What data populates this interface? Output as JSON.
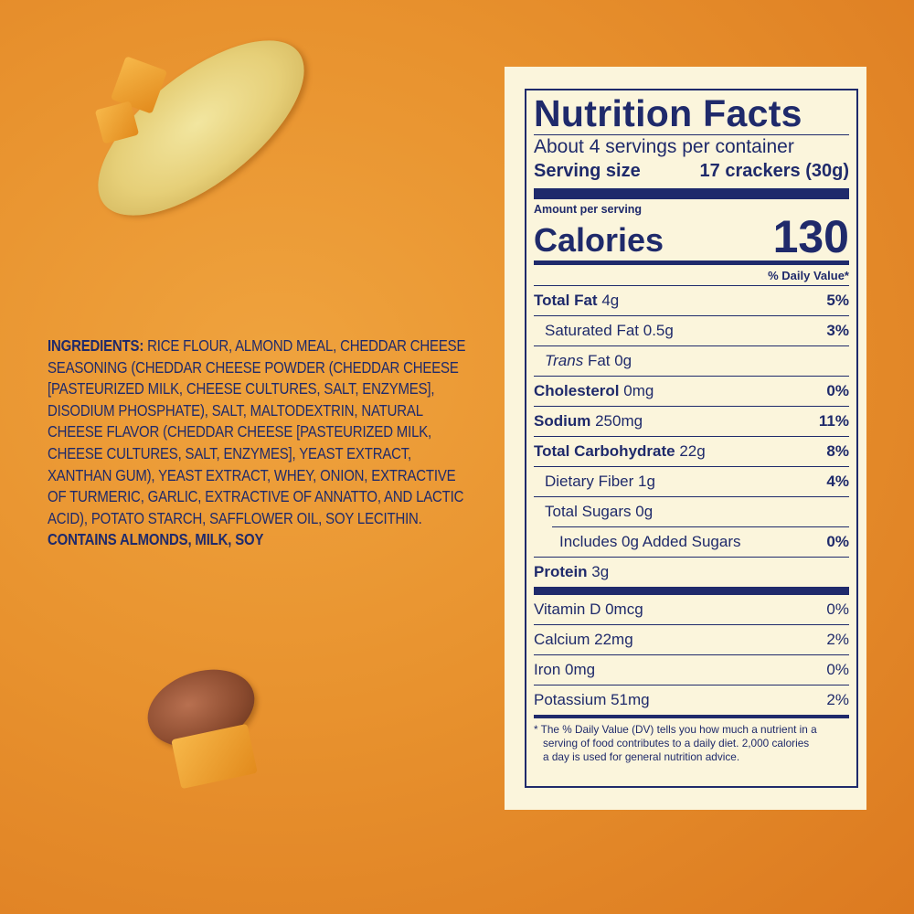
{
  "ingredients": {
    "label": "INGREDIENTS:",
    "text": "RICE FLOUR, ALMOND MEAL, CHEDDAR CHEESE SEASONING (CHEDDAR CHEESE POWDER (CHEDDAR CHEESE [PASTEURIZED MILK, CHEESE CULTURES, SALT, ENZYMES], DISODIUM PHOSPHATE), SALT, MALTODEXTRIN, NATURAL CHEESE FLAVOR (CHEDDAR CHEESE [PASTEURIZED MILK, CHEESE CULTURES, SALT, ENZYMES], YEAST EXTRACT, XANTHAN GUM), YEAST EXTRACT, WHEY, ONION, EXTRACTIVE OF TURMERIC, GARLIC, EXTRACTIVE OF ANNATTO, AND LACTIC ACID), POTATO STARCH, SAFFLOWER OIL, SOY LECITHIN.",
    "contains": "CONTAINS ALMONDS, MILK, SOY"
  },
  "nutrition": {
    "title": "Nutrition Facts",
    "servings": "About 4 servings per container",
    "serving_size_label": "Serving size",
    "serving_size_value": "17 crackers (30g)",
    "amount_per_serving": "Amount per serving",
    "calories_label": "Calories",
    "calories_value": "130",
    "daily_value_header": "% Daily Value*",
    "rows": [
      {
        "name": "Total Fat",
        "amount": "4g",
        "dv": "5%"
      },
      {
        "name": "Saturated Fat",
        "amount": "0.5g",
        "dv": "3%"
      },
      {
        "name": "Trans",
        "suffix": "Fat 0g",
        "dv": ""
      },
      {
        "name": "Cholesterol",
        "amount": "0mg",
        "dv": "0%"
      },
      {
        "name": "Sodium",
        "amount": "250mg",
        "dv": "11%"
      },
      {
        "name": "Total Carbohydrate",
        "amount": "22g",
        "dv": "8%"
      },
      {
        "name": "Dietary Fiber",
        "amount": "1g",
        "dv": "4%"
      },
      {
        "name": "Total Sugars",
        "amount": "0g",
        "dv": ""
      },
      {
        "name": "Includes 0g Added Sugars",
        "amount": "",
        "dv": "0%"
      },
      {
        "name": "Protein",
        "amount": "3g",
        "dv": ""
      }
    ],
    "vitamins": [
      {
        "name": "Vitamin D 0mcg",
        "dv": "0%"
      },
      {
        "name": "Calcium 22mg",
        "dv": "2%"
      },
      {
        "name": "Iron 0mg",
        "dv": "0%"
      },
      {
        "name": "Potassium 51mg",
        "dv": "2%"
      }
    ],
    "footnote_1": "* The % Daily Value (DV) tells you how much a nutrient in a",
    "footnote_2": "serving of food contributes to a daily diet. 2,000 calories",
    "footnote_3": "a day is used for general nutrition advice."
  },
  "colors": {
    "ink": "#1f2a6b",
    "label_bg": "#fbf5dc",
    "background": "#e8922e"
  }
}
